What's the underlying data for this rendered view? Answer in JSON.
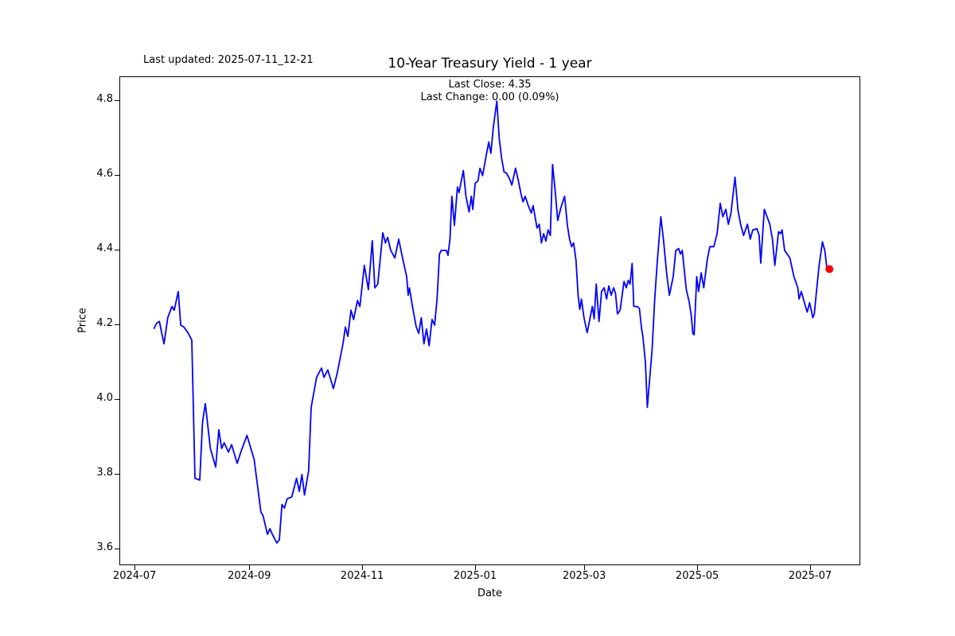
{
  "figure": {
    "background": "#ffffff",
    "last_updated_text": "Last updated: 2025-07-11_12-21"
  },
  "annotations": {
    "last_close": "Last Close: 4.35",
    "last_change": "Last Change: 0.00 (0.09%)"
  },
  "chart_data": {
    "type": "line",
    "title": "10-Year Treasury Yield - 1 year",
    "xlabel": "Date",
    "ylabel": "Price",
    "grid": false,
    "line_color": "#0000ff",
    "axes_edge_color": "#000000",
    "x_unit": "days since 2024-07-01",
    "date_range": [
      "2024-07-11",
      "2025-07-11"
    ],
    "xlim_days": [
      -8.2,
      392.1
    ],
    "ylim": [
      3.555,
      4.864
    ],
    "x_ticks": [
      {
        "day": 0,
        "label": "2024-07"
      },
      {
        "day": 62,
        "label": "2024-09"
      },
      {
        "day": 123,
        "label": "2024-11"
      },
      {
        "day": 184,
        "label": "2025-01"
      },
      {
        "day": 243,
        "label": "2025-03"
      },
      {
        "day": 304,
        "label": "2025-05"
      },
      {
        "day": 365,
        "label": "2025-07"
      }
    ],
    "y_ticks": [
      {
        "value": 3.6,
        "label": "3.6"
      },
      {
        "value": 3.8,
        "label": "3.8"
      },
      {
        "value": 4.0,
        "label": "4.0"
      },
      {
        "value": 4.2,
        "label": "4.2"
      },
      {
        "value": 4.4,
        "label": "4.4"
      },
      {
        "value": 4.6,
        "label": "4.6"
      },
      {
        "value": 4.8,
        "label": "4.8"
      }
    ],
    "last_close": 4.35,
    "last_change": 0.0,
    "last_change_pct": 0.09,
    "marker": {
      "day": 375.0,
      "price": 4.35,
      "color": "#ff0000",
      "radius_px": 5
    },
    "series": [
      {
        "name": "10-Year Treasury Yield",
        "points": [
          [
            10.0,
            4.19
          ],
          [
            11.5,
            4.205
          ],
          [
            13.0,
            4.21
          ],
          [
            14.2,
            4.18
          ],
          [
            15.5,
            4.15
          ],
          [
            17.5,
            4.22
          ],
          [
            19.8,
            4.25
          ],
          [
            21.0,
            4.24
          ],
          [
            23.2,
            4.29
          ],
          [
            24.5,
            4.2
          ],
          [
            26.2,
            4.195
          ],
          [
            28.4,
            4.18
          ],
          [
            30.5,
            4.16
          ],
          [
            32.2,
            3.79
          ],
          [
            34.8,
            3.785
          ],
          [
            36.3,
            3.94
          ],
          [
            37.8,
            3.99
          ],
          [
            40.5,
            3.87
          ],
          [
            43.4,
            3.82
          ],
          [
            45.1,
            3.92
          ],
          [
            46.6,
            3.87
          ],
          [
            48.0,
            3.885
          ],
          [
            50.3,
            3.86
          ],
          [
            52.0,
            3.88
          ],
          [
            55.0,
            3.83
          ],
          [
            57.0,
            3.86
          ],
          [
            60.3,
            3.905
          ],
          [
            64.2,
            3.84
          ],
          [
            67.8,
            3.7
          ],
          [
            69.0,
            3.69
          ],
          [
            71.4,
            3.64
          ],
          [
            72.7,
            3.655
          ],
          [
            74.0,
            3.64
          ],
          [
            76.4,
            3.617
          ],
          [
            77.8,
            3.625
          ],
          [
            79.2,
            3.72
          ],
          [
            80.5,
            3.71
          ],
          [
            82.0,
            3.735
          ],
          [
            84.5,
            3.74
          ],
          [
            87.1,
            3.79
          ],
          [
            88.6,
            3.755
          ],
          [
            90.0,
            3.8
          ],
          [
            91.4,
            3.745
          ],
          [
            93.6,
            3.81
          ],
          [
            95.0,
            3.98
          ],
          [
            97.9,
            4.06
          ],
          [
            100.6,
            4.085
          ],
          [
            101.9,
            4.06
          ],
          [
            104.0,
            4.08
          ],
          [
            107.0,
            4.03
          ],
          [
            109.0,
            4.07
          ],
          [
            112.2,
            4.15
          ],
          [
            113.5,
            4.195
          ],
          [
            114.8,
            4.17
          ],
          [
            116.5,
            4.24
          ],
          [
            117.9,
            4.215
          ],
          [
            120.0,
            4.266
          ],
          [
            121.3,
            4.25
          ],
          [
            123.7,
            4.36
          ],
          [
            125.9,
            4.295
          ],
          [
            128.0,
            4.426
          ],
          [
            129.4,
            4.3
          ],
          [
            131.0,
            4.31
          ],
          [
            133.7,
            4.447
          ],
          [
            135.1,
            4.42
          ],
          [
            136.3,
            4.435
          ],
          [
            138.0,
            4.4
          ],
          [
            140.2,
            4.38
          ],
          [
            142.3,
            4.43
          ],
          [
            144.5,
            4.377
          ],
          [
            146.6,
            4.33
          ],
          [
            147.4,
            4.28
          ],
          [
            148.1,
            4.3
          ],
          [
            149.5,
            4.256
          ],
          [
            151.7,
            4.196
          ],
          [
            153.1,
            4.178
          ],
          [
            154.5,
            4.22
          ],
          [
            155.9,
            4.15
          ],
          [
            157.3,
            4.19
          ],
          [
            158.7,
            4.145
          ],
          [
            160.3,
            4.215
          ],
          [
            161.7,
            4.2
          ],
          [
            163.0,
            4.27
          ],
          [
            164.3,
            4.39
          ],
          [
            165.2,
            4.4
          ],
          [
            168.1,
            4.4
          ],
          [
            168.9,
            4.387
          ],
          [
            170.0,
            4.43
          ],
          [
            171.0,
            4.545
          ],
          [
            172.4,
            4.467
          ],
          [
            174.0,
            4.57
          ],
          [
            174.9,
            4.555
          ],
          [
            177.2,
            4.614
          ],
          [
            178.6,
            4.545
          ],
          [
            180.3,
            4.503
          ],
          [
            181.5,
            4.545
          ],
          [
            182.3,
            4.51
          ],
          [
            183.6,
            4.58
          ],
          [
            185.1,
            4.586
          ],
          [
            186.2,
            4.62
          ],
          [
            187.6,
            4.6
          ],
          [
            189.6,
            4.655
          ],
          [
            190.9,
            4.69
          ],
          [
            192.1,
            4.66
          ],
          [
            193.4,
            4.73
          ],
          [
            195.3,
            4.8
          ],
          [
            196.6,
            4.7
          ],
          [
            197.9,
            4.647
          ],
          [
            199.2,
            4.61
          ],
          [
            200.5,
            4.607
          ],
          [
            202.3,
            4.59
          ],
          [
            203.4,
            4.575
          ],
          [
            205.4,
            4.62
          ],
          [
            207.0,
            4.585
          ],
          [
            208.4,
            4.55
          ],
          [
            209.5,
            4.53
          ],
          [
            210.6,
            4.545
          ],
          [
            212.3,
            4.52
          ],
          [
            213.9,
            4.5
          ],
          [
            214.9,
            4.52
          ],
          [
            217.0,
            4.46
          ],
          [
            218.2,
            4.47
          ],
          [
            219.4,
            4.42
          ],
          [
            220.6,
            4.445
          ],
          [
            221.8,
            4.425
          ],
          [
            223.0,
            4.455
          ],
          [
            224.2,
            4.44
          ],
          [
            225.4,
            4.63
          ],
          [
            226.8,
            4.56
          ],
          [
            228.2,
            4.48
          ],
          [
            229.9,
            4.515
          ],
          [
            231.9,
            4.545
          ],
          [
            233.5,
            4.465
          ],
          [
            234.6,
            4.43
          ],
          [
            235.7,
            4.41
          ],
          [
            236.8,
            4.42
          ],
          [
            238.1,
            4.373
          ],
          [
            239.2,
            4.28
          ],
          [
            240.1,
            4.242
          ],
          [
            241.0,
            4.27
          ],
          [
            242.4,
            4.22
          ],
          [
            244.1,
            4.18
          ],
          [
            246.9,
            4.25
          ],
          [
            247.9,
            4.217
          ],
          [
            249.0,
            4.31
          ],
          [
            250.5,
            4.21
          ],
          [
            251.9,
            4.29
          ],
          [
            253.3,
            4.3
          ],
          [
            254.6,
            4.27
          ],
          [
            255.8,
            4.305
          ],
          [
            257.1,
            4.28
          ],
          [
            258.4,
            4.3
          ],
          [
            259.4,
            4.285
          ],
          [
            260.5,
            4.23
          ],
          [
            261.9,
            4.24
          ],
          [
            264.0,
            4.317
          ],
          [
            265.2,
            4.3
          ],
          [
            266.3,
            4.32
          ],
          [
            267.3,
            4.31
          ],
          [
            268.4,
            4.365
          ],
          [
            269.3,
            4.25
          ],
          [
            271.0,
            4.25
          ],
          [
            272.3,
            4.245
          ],
          [
            273.5,
            4.19
          ],
          [
            274.2,
            4.17
          ],
          [
            275.6,
            4.1
          ],
          [
            276.6,
            3.98
          ],
          [
            279.2,
            4.135
          ],
          [
            280.6,
            4.27
          ],
          [
            282.0,
            4.37
          ],
          [
            283.9,
            4.49
          ],
          [
            285.5,
            4.42
          ],
          [
            287.0,
            4.34
          ],
          [
            288.5,
            4.28
          ],
          [
            290.6,
            4.33
          ],
          [
            292.0,
            4.4
          ],
          [
            293.5,
            4.405
          ],
          [
            294.5,
            4.39
          ],
          [
            295.5,
            4.4
          ],
          [
            296.5,
            4.35
          ],
          [
            297.7,
            4.295
          ],
          [
            299.2,
            4.263
          ],
          [
            300.3,
            4.228
          ],
          [
            301.2,
            4.178
          ],
          [
            301.9,
            4.174
          ],
          [
            303.3,
            4.33
          ],
          [
            304.3,
            4.29
          ],
          [
            305.7,
            4.34
          ],
          [
            307.1,
            4.3
          ],
          [
            309.0,
            4.375
          ],
          [
            310.4,
            4.41
          ],
          [
            312.5,
            4.41
          ],
          [
            314.3,
            4.445
          ],
          [
            316.0,
            4.526
          ],
          [
            317.4,
            4.49
          ],
          [
            319.0,
            4.51
          ],
          [
            320.4,
            4.47
          ],
          [
            321.8,
            4.5
          ],
          [
            324.0,
            4.596
          ],
          [
            325.6,
            4.508
          ],
          [
            327.0,
            4.47
          ],
          [
            328.6,
            4.44
          ],
          [
            330.7,
            4.47
          ],
          [
            332.2,
            4.43
          ],
          [
            333.6,
            4.455
          ],
          [
            335.8,
            4.458
          ],
          [
            337.0,
            4.44
          ],
          [
            337.9,
            4.366
          ],
          [
            339.8,
            4.51
          ],
          [
            341.3,
            4.49
          ],
          [
            342.8,
            4.47
          ],
          [
            344.2,
            4.43
          ],
          [
            345.5,
            4.36
          ],
          [
            347.5,
            4.45
          ],
          [
            348.6,
            4.445
          ],
          [
            349.4,
            4.455
          ],
          [
            350.8,
            4.4
          ],
          [
            352.2,
            4.39
          ],
          [
            353.6,
            4.38
          ],
          [
            355.8,
            4.33
          ],
          [
            357.9,
            4.3
          ],
          [
            358.6,
            4.27
          ],
          [
            359.8,
            4.29
          ],
          [
            361.5,
            4.26
          ],
          [
            363.0,
            4.235
          ],
          [
            364.3,
            4.26
          ],
          [
            365.2,
            4.24
          ],
          [
            366.0,
            4.22
          ],
          [
            366.8,
            4.23
          ],
          [
            368.2,
            4.3
          ],
          [
            369.4,
            4.359
          ],
          [
            370.0,
            4.38
          ],
          [
            371.2,
            4.423
          ],
          [
            372.5,
            4.4
          ],
          [
            373.7,
            4.35
          ],
          [
            375.0,
            4.35
          ]
        ]
      }
    ]
  }
}
